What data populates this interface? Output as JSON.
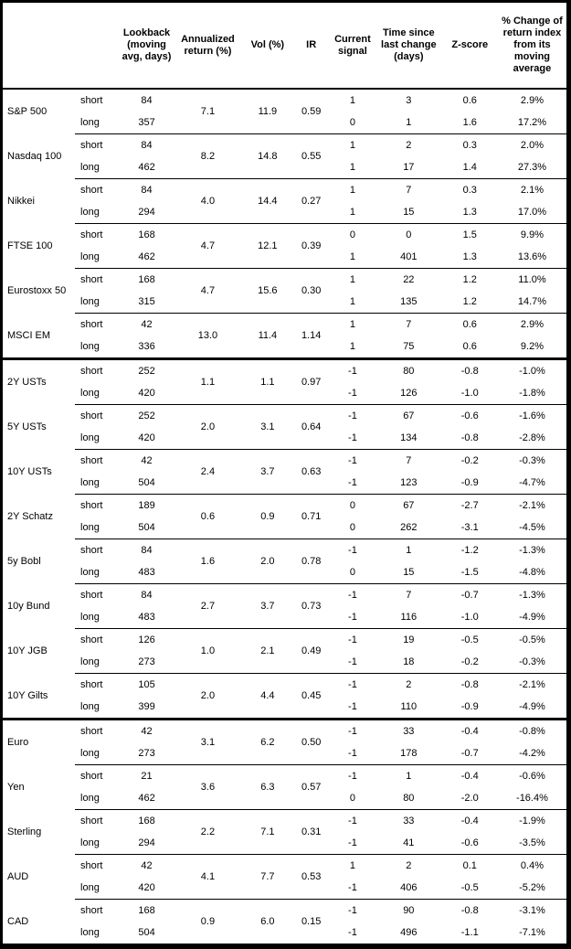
{
  "colors": {
    "border": "#000000",
    "text": "#000000",
    "background": "#ffffff"
  },
  "table": {
    "columns": [
      "",
      "",
      "Lookback (moving avg, days)",
      "Annualized return (%)",
      "Vol (%)",
      "IR",
      "Current signal",
      "Time since last change (days)",
      "Z-score",
      "% Change of return index from its moving average"
    ],
    "leg_labels": [
      "short",
      "long"
    ],
    "groups": [
      {
        "name": "S&P 500",
        "section_start": false,
        "ann_return": "7.1",
        "vol": "11.9",
        "ir": "0.59",
        "legs": [
          {
            "label": "short",
            "lookback": "84",
            "signal": "1",
            "time_since": "3",
            "z_score": "0.6",
            "pct_change": "2.9%"
          },
          {
            "label": "long",
            "lookback": "357",
            "signal": "0",
            "time_since": "1",
            "z_score": "1.6",
            "pct_change": "17.2%"
          }
        ]
      },
      {
        "name": "Nasdaq 100",
        "section_start": false,
        "ann_return": "8.2",
        "vol": "14.8",
        "ir": "0.55",
        "legs": [
          {
            "label": "short",
            "lookback": "84",
            "signal": "1",
            "time_since": "2",
            "z_score": "0.3",
            "pct_change": "2.0%"
          },
          {
            "label": "long",
            "lookback": "462",
            "signal": "1",
            "time_since": "17",
            "z_score": "1.4",
            "pct_change": "27.3%"
          }
        ]
      },
      {
        "name": "Nikkei",
        "section_start": false,
        "ann_return": "4.0",
        "vol": "14.4",
        "ir": "0.27",
        "legs": [
          {
            "label": "short",
            "lookback": "84",
            "signal": "1",
            "time_since": "7",
            "z_score": "0.3",
            "pct_change": "2.1%"
          },
          {
            "label": "long",
            "lookback": "294",
            "signal": "1",
            "time_since": "15",
            "z_score": "1.3",
            "pct_change": "17.0%"
          }
        ]
      },
      {
        "name": "FTSE 100",
        "section_start": false,
        "ann_return": "4.7",
        "vol": "12.1",
        "ir": "0.39",
        "legs": [
          {
            "label": "short",
            "lookback": "168",
            "signal": "0",
            "time_since": "0",
            "z_score": "1.5",
            "pct_change": "9.9%"
          },
          {
            "label": "long",
            "lookback": "462",
            "signal": "1",
            "time_since": "401",
            "z_score": "1.3",
            "pct_change": "13.6%"
          }
        ]
      },
      {
        "name": "Eurostoxx 50",
        "section_start": false,
        "ann_return": "4.7",
        "vol": "15.6",
        "ir": "0.30",
        "legs": [
          {
            "label": "short",
            "lookback": "168",
            "signal": "1",
            "time_since": "22",
            "z_score": "1.2",
            "pct_change": "11.0%"
          },
          {
            "label": "long",
            "lookback": "315",
            "signal": "1",
            "time_since": "135",
            "z_score": "1.2",
            "pct_change": "14.7%"
          }
        ]
      },
      {
        "name": "MSCI EM",
        "section_start": false,
        "ann_return": "13.0",
        "vol": "11.4",
        "ir": "1.14",
        "legs": [
          {
            "label": "short",
            "lookback": "42",
            "signal": "1",
            "time_since": "7",
            "z_score": "0.6",
            "pct_change": "2.9%"
          },
          {
            "label": "long",
            "lookback": "336",
            "signal": "1",
            "time_since": "75",
            "z_score": "0.6",
            "pct_change": "9.2%"
          }
        ]
      },
      {
        "name": "2Y USTs",
        "section_start": true,
        "ann_return": "1.1",
        "vol": "1.1",
        "ir": "0.97",
        "legs": [
          {
            "label": "short",
            "lookback": "252",
            "signal": "-1",
            "time_since": "80",
            "z_score": "-0.8",
            "pct_change": "-1.0%"
          },
          {
            "label": "long",
            "lookback": "420",
            "signal": "-1",
            "time_since": "126",
            "z_score": "-1.0",
            "pct_change": "-1.8%"
          }
        ]
      },
      {
        "name": "5Y USTs",
        "section_start": false,
        "ann_return": "2.0",
        "vol": "3.1",
        "ir": "0.64",
        "legs": [
          {
            "label": "short",
            "lookback": "252",
            "signal": "-1",
            "time_since": "67",
            "z_score": "-0.6",
            "pct_change": "-1.6%"
          },
          {
            "label": "long",
            "lookback": "420",
            "signal": "-1",
            "time_since": "134",
            "z_score": "-0.8",
            "pct_change": "-2.8%"
          }
        ]
      },
      {
        "name": "10Y USTs",
        "section_start": false,
        "ann_return": "2.4",
        "vol": "3.7",
        "ir": "0.63",
        "legs": [
          {
            "label": "short",
            "lookback": "42",
            "signal": "-1",
            "time_since": "7",
            "z_score": "-0.2",
            "pct_change": "-0.3%"
          },
          {
            "label": "long",
            "lookback": "504",
            "signal": "-1",
            "time_since": "123",
            "z_score": "-0.9",
            "pct_change": "-4.7%"
          }
        ]
      },
      {
        "name": "2Y Schatz",
        "section_start": false,
        "ann_return": "0.6",
        "vol": "0.9",
        "ir": "0.71",
        "legs": [
          {
            "label": "short",
            "lookback": "189",
            "signal": "0",
            "time_since": "67",
            "z_score": "-2.7",
            "pct_change": "-2.1%"
          },
          {
            "label": "long",
            "lookback": "504",
            "signal": "0",
            "time_since": "262",
            "z_score": "-3.1",
            "pct_change": "-4.5%"
          }
        ]
      },
      {
        "name": "5y Bobl",
        "section_start": false,
        "ann_return": "1.6",
        "vol": "2.0",
        "ir": "0.78",
        "legs": [
          {
            "label": "short",
            "lookback": "84",
            "signal": "-1",
            "time_since": "1",
            "z_score": "-1.2",
            "pct_change": "-1.3%"
          },
          {
            "label": "long",
            "lookback": "483",
            "signal": "0",
            "time_since": "15",
            "z_score": "-1.5",
            "pct_change": "-4.8%"
          }
        ]
      },
      {
        "name": "10y Bund",
        "section_start": false,
        "ann_return": "2.7",
        "vol": "3.7",
        "ir": "0.73",
        "legs": [
          {
            "label": "short",
            "lookback": "84",
            "signal": "-1",
            "time_since": "7",
            "z_score": "-0.7",
            "pct_change": "-1.3%"
          },
          {
            "label": "long",
            "lookback": "483",
            "signal": "-1",
            "time_since": "116",
            "z_score": "-1.0",
            "pct_change": "-4.9%"
          }
        ]
      },
      {
        "name": "10Y JGB",
        "section_start": false,
        "ann_return": "1.0",
        "vol": "2.1",
        "ir": "0.49",
        "legs": [
          {
            "label": "short",
            "lookback": "126",
            "signal": "-1",
            "time_since": "19",
            "z_score": "-0.5",
            "pct_change": "-0.5%"
          },
          {
            "label": "long",
            "lookback": "273",
            "signal": "-1",
            "time_since": "18",
            "z_score": "-0.2",
            "pct_change": "-0.3%"
          }
        ]
      },
      {
        "name": "10Y Gilts",
        "section_start": false,
        "ann_return": "2.0",
        "vol": "4.4",
        "ir": "0.45",
        "legs": [
          {
            "label": "short",
            "lookback": "105",
            "signal": "-1",
            "time_since": "2",
            "z_score": "-0.8",
            "pct_change": "-2.1%"
          },
          {
            "label": "long",
            "lookback": "399",
            "signal": "-1",
            "time_since": "110",
            "z_score": "-0.9",
            "pct_change": "-4.9%"
          }
        ]
      },
      {
        "name": "Euro",
        "section_start": true,
        "ann_return": "3.1",
        "vol": "6.2",
        "ir": "0.50",
        "legs": [
          {
            "label": "short",
            "lookback": "42",
            "signal": "-1",
            "time_since": "33",
            "z_score": "-0.4",
            "pct_change": "-0.8%"
          },
          {
            "label": "long",
            "lookback": "273",
            "signal": "-1",
            "time_since": "178",
            "z_score": "-0.7",
            "pct_change": "-4.2%"
          }
        ]
      },
      {
        "name": "Yen",
        "section_start": false,
        "ann_return": "3.6",
        "vol": "6.3",
        "ir": "0.57",
        "legs": [
          {
            "label": "short",
            "lookback": "21",
            "signal": "-1",
            "time_since": "1",
            "z_score": "-0.4",
            "pct_change": "-0.6%"
          },
          {
            "label": "long",
            "lookback": "462",
            "signal": "0",
            "time_since": "80",
            "z_score": "-2.0",
            "pct_change": "-16.4%"
          }
        ]
      },
      {
        "name": "Sterling",
        "section_start": false,
        "ann_return": "2.2",
        "vol": "7.1",
        "ir": "0.31",
        "legs": [
          {
            "label": "short",
            "lookback": "168",
            "signal": "-1",
            "time_since": "33",
            "z_score": "-0.4",
            "pct_change": "-1.9%"
          },
          {
            "label": "long",
            "lookback": "294",
            "signal": "-1",
            "time_since": "41",
            "z_score": "-0.6",
            "pct_change": "-3.5%"
          }
        ]
      },
      {
        "name": "AUD",
        "section_start": false,
        "ann_return": "4.1",
        "vol": "7.7",
        "ir": "0.53",
        "legs": [
          {
            "label": "short",
            "lookback": "42",
            "signal": "1",
            "time_since": "2",
            "z_score": "0.1",
            "pct_change": "0.4%"
          },
          {
            "label": "long",
            "lookback": "420",
            "signal": "-1",
            "time_since": "406",
            "z_score": "-0.5",
            "pct_change": "-5.2%"
          }
        ]
      },
      {
        "name": "CAD",
        "section_start": false,
        "ann_return": "0.9",
        "vol": "6.0",
        "ir": "0.15",
        "legs": [
          {
            "label": "short",
            "lookback": "168",
            "signal": "-1",
            "time_since": "90",
            "z_score": "-0.8",
            "pct_change": "-3.1%"
          },
          {
            "label": "long",
            "lookback": "504",
            "signal": "-1",
            "time_since": "496",
            "z_score": "-1.1",
            "pct_change": "-7.1%"
          }
        ]
      }
    ]
  }
}
